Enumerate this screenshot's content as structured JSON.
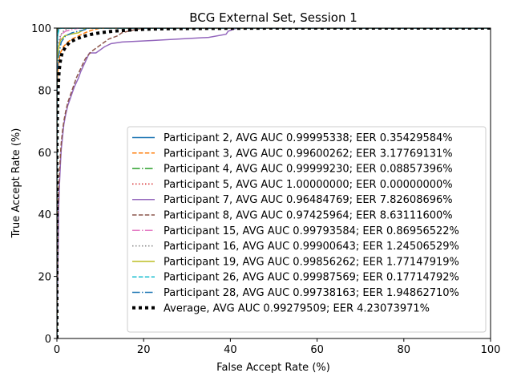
{
  "chart_data": {
    "type": "line",
    "title": "BCG External Set, Session 1",
    "xlabel": "False Accept Rate (%)",
    "ylabel": "True Accept Rate (%)",
    "xlim": [
      0,
      100
    ],
    "ylim": [
      0,
      100
    ],
    "xticks": [
      "0",
      "20",
      "40",
      "60",
      "80",
      "100"
    ],
    "yticks": [
      "0",
      "20",
      "40",
      "60",
      "80",
      "100"
    ],
    "grid": false,
    "legend_position": "lower-right",
    "series": [
      {
        "name": "Participant 2, AVG AUC 0.99995338; EER 0.35429584%",
        "color": "#1f77b4",
        "dash": "solid",
        "x": [
          0,
          0,
          0.1,
          0.2,
          0.35,
          0.6,
          1.5,
          100
        ],
        "y": [
          0,
          90,
          96,
          98.5,
          99.6,
          100,
          100,
          100
        ]
      },
      {
        "name": "Participant 3, AVG AUC 0.99600262; EER 3.17769131%",
        "color": "#ff7f0e",
        "dash": "dashed",
        "x": [
          0,
          0,
          0.3,
          0.8,
          1.5,
          2.5,
          3.5,
          5,
          6.5,
          8,
          10,
          100
        ],
        "y": [
          0,
          80,
          88,
          92,
          94,
          95.5,
          96.5,
          97.5,
          98.5,
          99.3,
          100,
          100
        ]
      },
      {
        "name": "Participant 4, AVG AUC 0.99999230; EER 0.08857396%",
        "color": "#2ca02c",
        "dash": "dashdot",
        "x": [
          0,
          0,
          0.05,
          0.1,
          0.3,
          100
        ],
        "y": [
          0,
          95,
          99,
          99.8,
          100,
          100
        ]
      },
      {
        "name": "Participant 5, AVG AUC 1.00000000; EER 0.00000000%",
        "color": "#d62728",
        "dash": "dotted",
        "x": [
          0,
          0,
          100
        ],
        "y": [
          0,
          100,
          100
        ]
      },
      {
        "name": "Participant 7, AVG AUC 0.96484769; EER 7.82608696%",
        "color": "#9467bd",
        "dash": "solid",
        "x": [
          0,
          0.3,
          0.4,
          0.6,
          0.8,
          1.0,
          1.3,
          1.6,
          2.0,
          2.5,
          3.0,
          3.5,
          4.0,
          4.5,
          5.0,
          5.5,
          6.0,
          6.5,
          7.0,
          7.5,
          9.0,
          10.0,
          11.0,
          12.5,
          15.0,
          22.0,
          35.0,
          39.0,
          39.5,
          41.5,
          100
        ],
        "y": [
          4,
          30,
          42,
          50,
          56,
          61,
          65,
          69,
          72,
          75,
          77,
          79,
          81,
          82.5,
          84,
          86,
          87.5,
          89,
          90.5,
          92,
          92,
          93,
          94,
          95,
          95.5,
          96,
          97,
          98,
          99,
          100,
          100
        ]
      },
      {
        "name": "Participant 8, AVG AUC 0.97425964; EER 8.63111600%",
        "color": "#8c564b",
        "dash": "dashed",
        "x": [
          0,
          0.2,
          0.4,
          0.6,
          0.8,
          1.0,
          1.3,
          1.6,
          2.0,
          2.5,
          3.0,
          3.5,
          4.0,
          4.5,
          5.0,
          5.5,
          6.0,
          6.5,
          7.0,
          8.0,
          9.0,
          10.0,
          11.0,
          12.0,
          13.0,
          14.0,
          15.0,
          16.5,
          18.0,
          20.0,
          100
        ],
        "y": [
          5,
          40,
          48,
          54,
          59,
          63,
          67,
          70,
          73,
          76,
          78,
          80,
          82,
          84,
          85.5,
          87,
          88.5,
          90,
          91,
          92.5,
          93.5,
          94.5,
          95.5,
          96.5,
          97,
          97.5,
          98.5,
          99,
          99.5,
          100,
          100
        ]
      },
      {
        "name": "Participant 15, AVG AUC 0.99793584; EER 0.86956522%",
        "color": "#e377c2",
        "dash": "dashdot",
        "x": [
          0,
          0,
          0.3,
          0.7,
          1.0,
          2.0,
          3.5,
          5.0,
          100
        ],
        "y": [
          0,
          88,
          93,
          96,
          98,
          99,
          99.5,
          100,
          100
        ]
      },
      {
        "name": "Participant 16, AVG AUC 0.99900643; EER 1.24506529%",
        "color": "#7f7f7f",
        "dash": "dotted",
        "x": [
          0,
          0,
          0.3,
          0.8,
          1.3,
          2.0,
          3.0,
          100
        ],
        "y": [
          0,
          90,
          95,
          97.5,
          98.8,
          99.5,
          100,
          100
        ]
      },
      {
        "name": "Participant 19, AVG AUC 0.99856262; EER 1.77147919%",
        "color": "#bcbd22",
        "dash": "solid",
        "x": [
          0,
          0,
          0.3,
          0.8,
          1.8,
          3.0,
          5.0,
          6.2,
          6.5,
          100
        ],
        "y": [
          0,
          89,
          93,
          96,
          97.5,
          98,
          98.5,
          99.5,
          100,
          100
        ]
      },
      {
        "name": "Participant 26, AVG AUC 0.99987569; EER 0.17714792%",
        "color": "#17becf",
        "dash": "dashed",
        "x": [
          0,
          0,
          0.2,
          0.5,
          1.0,
          100
        ],
        "y": [
          0,
          93,
          98,
          99.5,
          100,
          100
        ]
      },
      {
        "name": "Participant 28, AVG AUC 0.99738163; EER 1.94862710%",
        "color": "#1f77b4",
        "dash": "dashdot",
        "x": [
          0,
          0,
          0.5,
          1.0,
          2.0,
          3.5,
          5.0,
          6.5,
          7.0,
          100
        ],
        "y": [
          0,
          86,
          92,
          95.5,
          97.5,
          98.5,
          99,
          99.5,
          100,
          100
        ]
      },
      {
        "name": "Average, AVG AUC 0.99279509; EER 4.23073971%",
        "color": "#000000",
        "dash": "bold-dotted",
        "x": [
          0,
          0,
          0.05,
          0.1,
          0.2,
          0.35,
          0.5,
          0.8,
          1.2,
          2.0,
          3.0,
          4.5,
          6.0,
          8.0,
          10.0,
          13.0,
          16.0,
          20.0,
          25.0,
          35.0,
          50.0,
          100
        ],
        "y": [
          0,
          60,
          66,
          72,
          77,
          82,
          86,
          89.5,
          92,
          94,
          95.5,
          96.5,
          97.3,
          98,
          98.5,
          99,
          99.3,
          99.6,
          99.8,
          99.9,
          100,
          100
        ]
      }
    ]
  }
}
